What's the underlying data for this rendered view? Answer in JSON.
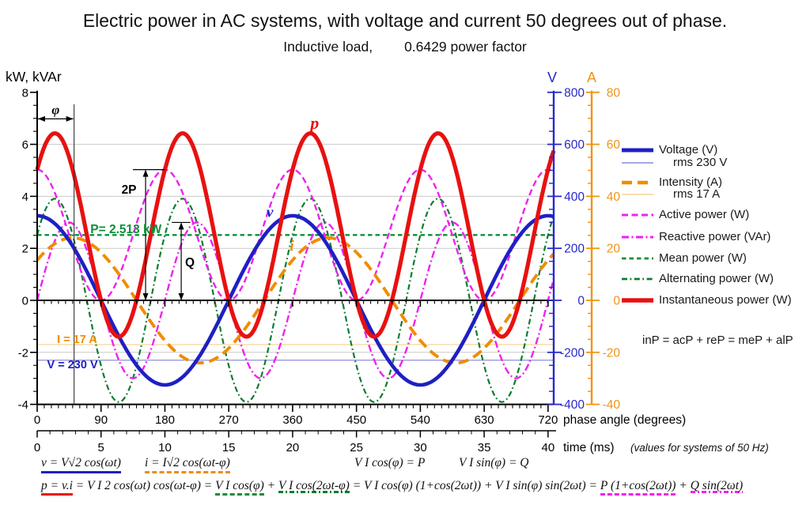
{
  "title": "Electric power in AC systems, with voltage and current 50 degrees out of phase.",
  "subtitle_left": "Inductive load,",
  "subtitle_right": "0.6429 power factor",
  "side_equation": "inP = acP + reP = meP + alP",
  "chart_data": {
    "type": "line",
    "x_axis_phase": {
      "title": "phase angle (degrees)",
      "min": 0,
      "max": 728,
      "major_tick_deg": 90,
      "minor_tick_deg": 10,
      "tick_labels": [
        "0",
        "90",
        "180",
        "270",
        "360",
        "450",
        "540",
        "630",
        "720"
      ]
    },
    "x_axis_time": {
      "title": "time (ms)",
      "note": "(values for systems of 50 Hz)",
      "min": 0,
      "max": 40,
      "major_tick_ms": 5,
      "minor_tick_ms": 1,
      "tick_labels": [
        "0",
        "5",
        "10",
        "15",
        "20",
        "25",
        "30",
        "35",
        "40"
      ]
    },
    "y_axis_power": {
      "title": "kW, kVAr",
      "min": -4,
      "max": 8,
      "major_tick": 2,
      "minor_tick": 0.5,
      "tick_labels": [
        "8",
        "6",
        "4",
        "2",
        "0",
        "-2",
        "-4"
      ],
      "color": "#000000"
    },
    "y_axis_voltage": {
      "title": "V",
      "min": -400,
      "max": 800,
      "major_tick": 200,
      "minor_tick": 50,
      "tick_labels": [
        "800",
        "600",
        "400",
        "200",
        "0",
        "-200",
        "-400"
      ],
      "color": "#2929c8"
    },
    "y_axis_current": {
      "title": "A",
      "min": -40,
      "max": 80,
      "major_tick": 20,
      "minor_tick": 5,
      "tick_labels": [
        "80",
        "60",
        "40",
        "20",
        "0",
        "-20",
        "-40"
      ],
      "color": "#ef9418"
    },
    "gridlines_power": [
      6,
      4,
      2,
      -2
    ],
    "grid_color": "#c9c9c9",
    "parameters": {
      "V_rms_V": 230,
      "I_rms_A": 17,
      "phase_shift_deg": 50,
      "power_factor": 0.6429,
      "P_kW": 2.513,
      "Q_kVAr": 2.996,
      "VI_kVA": 3.91,
      "frequency_Hz": 50
    },
    "series": [
      {
        "id": "voltage_rms",
        "name": "rms 230 V",
        "kind": "hline",
        "value": -2.3,
        "color": "#9a9ade",
        "width": 1.3,
        "dash": "none"
      },
      {
        "id": "intensity_rms",
        "name": "rms 17 A",
        "kind": "hline",
        "value": -1.7,
        "color": "#f7d9a6",
        "width": 1.3,
        "dash": "none"
      },
      {
        "id": "mean",
        "name": "Mean power (W)",
        "kind": "cosine",
        "offset": 2.513,
        "amplitude": 0,
        "harmonic": 0,
        "phase_deg": 0,
        "color": "#0a9038",
        "width": 2.3,
        "dash": "5.5 4"
      },
      {
        "id": "alternating",
        "name": "Alternating power (W)",
        "kind": "cosine",
        "offset": 0,
        "amplitude": 3.91,
        "harmonic": 2,
        "phase_deg": 50,
        "color": "#0c7c30",
        "width": 2.2,
        "dash": "7 3.5 1.8 3.5"
      },
      {
        "id": "reactive",
        "name": "Reactive power (VAr)",
        "kind": "cosine",
        "offset": 0,
        "amplitude": 2.996,
        "harmonic": 2,
        "phase_deg": 90,
        "color": "#ee22ee",
        "width": 2.4,
        "dash": "9 3.5 2 3.5"
      },
      {
        "id": "active",
        "name": "Active power (W)",
        "kind": "cosine",
        "offset": 2.513,
        "amplitude": 2.513,
        "harmonic": 2,
        "phase_deg": 0,
        "color": "#ee22ee",
        "width": 2.4,
        "dash": "8 4.5"
      },
      {
        "id": "intensity",
        "name": "Intensity (A)",
        "kind": "cosine",
        "offset": 0,
        "amplitude": 2.404,
        "harmonic": 1,
        "phase_deg": 50,
        "color": "#f08c00",
        "width": 3.9,
        "dash": "13 7"
      },
      {
        "id": "voltage",
        "name": "Voltage (V)",
        "kind": "cosine",
        "offset": 0,
        "amplitude": 3.253,
        "harmonic": 1,
        "phase_deg": 0,
        "color": "#1f1fc4",
        "width": 4.6,
        "dash": "none"
      },
      {
        "id": "instantaneous",
        "name": "Instantaneous power (W)",
        "kind": "cosine",
        "offset": 2.513,
        "amplitude": 3.91,
        "harmonic": 2,
        "phase_deg": 50,
        "color": "#e81111",
        "width": 5.2,
        "dash": "none"
      }
    ],
    "curve_labels": [
      {
        "text": "p",
        "color": "#e81111",
        "x_deg": 391,
        "value": 6.6,
        "size": 22
      },
      {
        "text": "v",
        "color": "#1f1fc4",
        "x_deg": 328,
        "value": 3.2,
        "size": 19
      },
      {
        "text": "i",
        "color": "#f08c00",
        "x_deg": 359,
        "value": 1.92,
        "size": 19
      }
    ],
    "annotations": {
      "phi": {
        "label": "φ",
        "x_deg": 52,
        "arrow_y_value": 6.98
      },
      "two_p": {
        "label": "2P",
        "x_deg": 152.8,
        "top_value": 5.026,
        "bar_to_deg": 180
      },
      "q": {
        "label": "Q",
        "x_deg": 203,
        "top_value": 2.996,
        "bar_to_deg": 216
      },
      "p_text": {
        "label": "P= 2.513 kW",
        "color": "#0a9038",
        "x_deg": 75,
        "value": 2.58
      },
      "i_text": {
        "label": "I = 17 A",
        "color": "#f08c00",
        "x_deg": 28,
        "value": -1.64
      },
      "v_text": {
        "label": "V = 230 V",
        "color": "#1f1fc4",
        "x_deg": 14,
        "value": -2.61
      }
    }
  },
  "legend": {
    "items": [
      {
        "label": "Voltage (V)",
        "swatch": "voltage",
        "indent": false
      },
      {
        "label": "rms 230 V",
        "swatch": "voltage_rms",
        "indent": true
      },
      {
        "label": "Intensity (A)",
        "swatch": "intensity",
        "indent": false
      },
      {
        "label": "rms 17 A",
        "swatch": "intensity_rms",
        "indent": true
      },
      {
        "label": "Active power (W)",
        "swatch": "active",
        "indent": false
      },
      {
        "label": "Reactive power (VAr)",
        "swatch": "reactive",
        "indent": false
      },
      {
        "label": "Mean power (W)",
        "swatch": "mean",
        "indent": false
      },
      {
        "label": "Alternating power (W)",
        "swatch": "alternating",
        "indent": false
      },
      {
        "label": "Instantaneous power (W)",
        "swatch": "instantaneous",
        "indent": false
      }
    ]
  },
  "formulas": {
    "row1": [
      {
        "text": "v = V√2 cos(ωt)",
        "underline": "voltage"
      },
      {
        "text": "i = I√2 cos(ωt-φ)",
        "underline": "intensity"
      },
      {
        "text": "V I cos(φ) = P",
        "underline": "none"
      },
      {
        "text": "V I sin(φ) = Q",
        "underline": "none"
      }
    ],
    "row2": [
      {
        "text": "p = v.i",
        "underline": "instantaneous"
      },
      {
        "text": " = V I 2 cos(ωt) cos(ωt-φ) = ",
        "underline": "none"
      },
      {
        "text": "V I cos(φ)",
        "underline": "mean"
      },
      {
        "text": " + ",
        "underline": "none"
      },
      {
        "text": "V I cos(2ωt-φ)",
        "underline": "alternating"
      },
      {
        "text": " = V I cos(φ) (1+cos(2ωt)) + V I sin(φ) sin(2ωt) = ",
        "underline": "none"
      },
      {
        "text": "P (1+cos(2ωt))",
        "underline": "active"
      },
      {
        "text": " + ",
        "underline": "none"
      },
      {
        "text": "Q sin(2ωt)",
        "underline": "reactive"
      }
    ]
  }
}
